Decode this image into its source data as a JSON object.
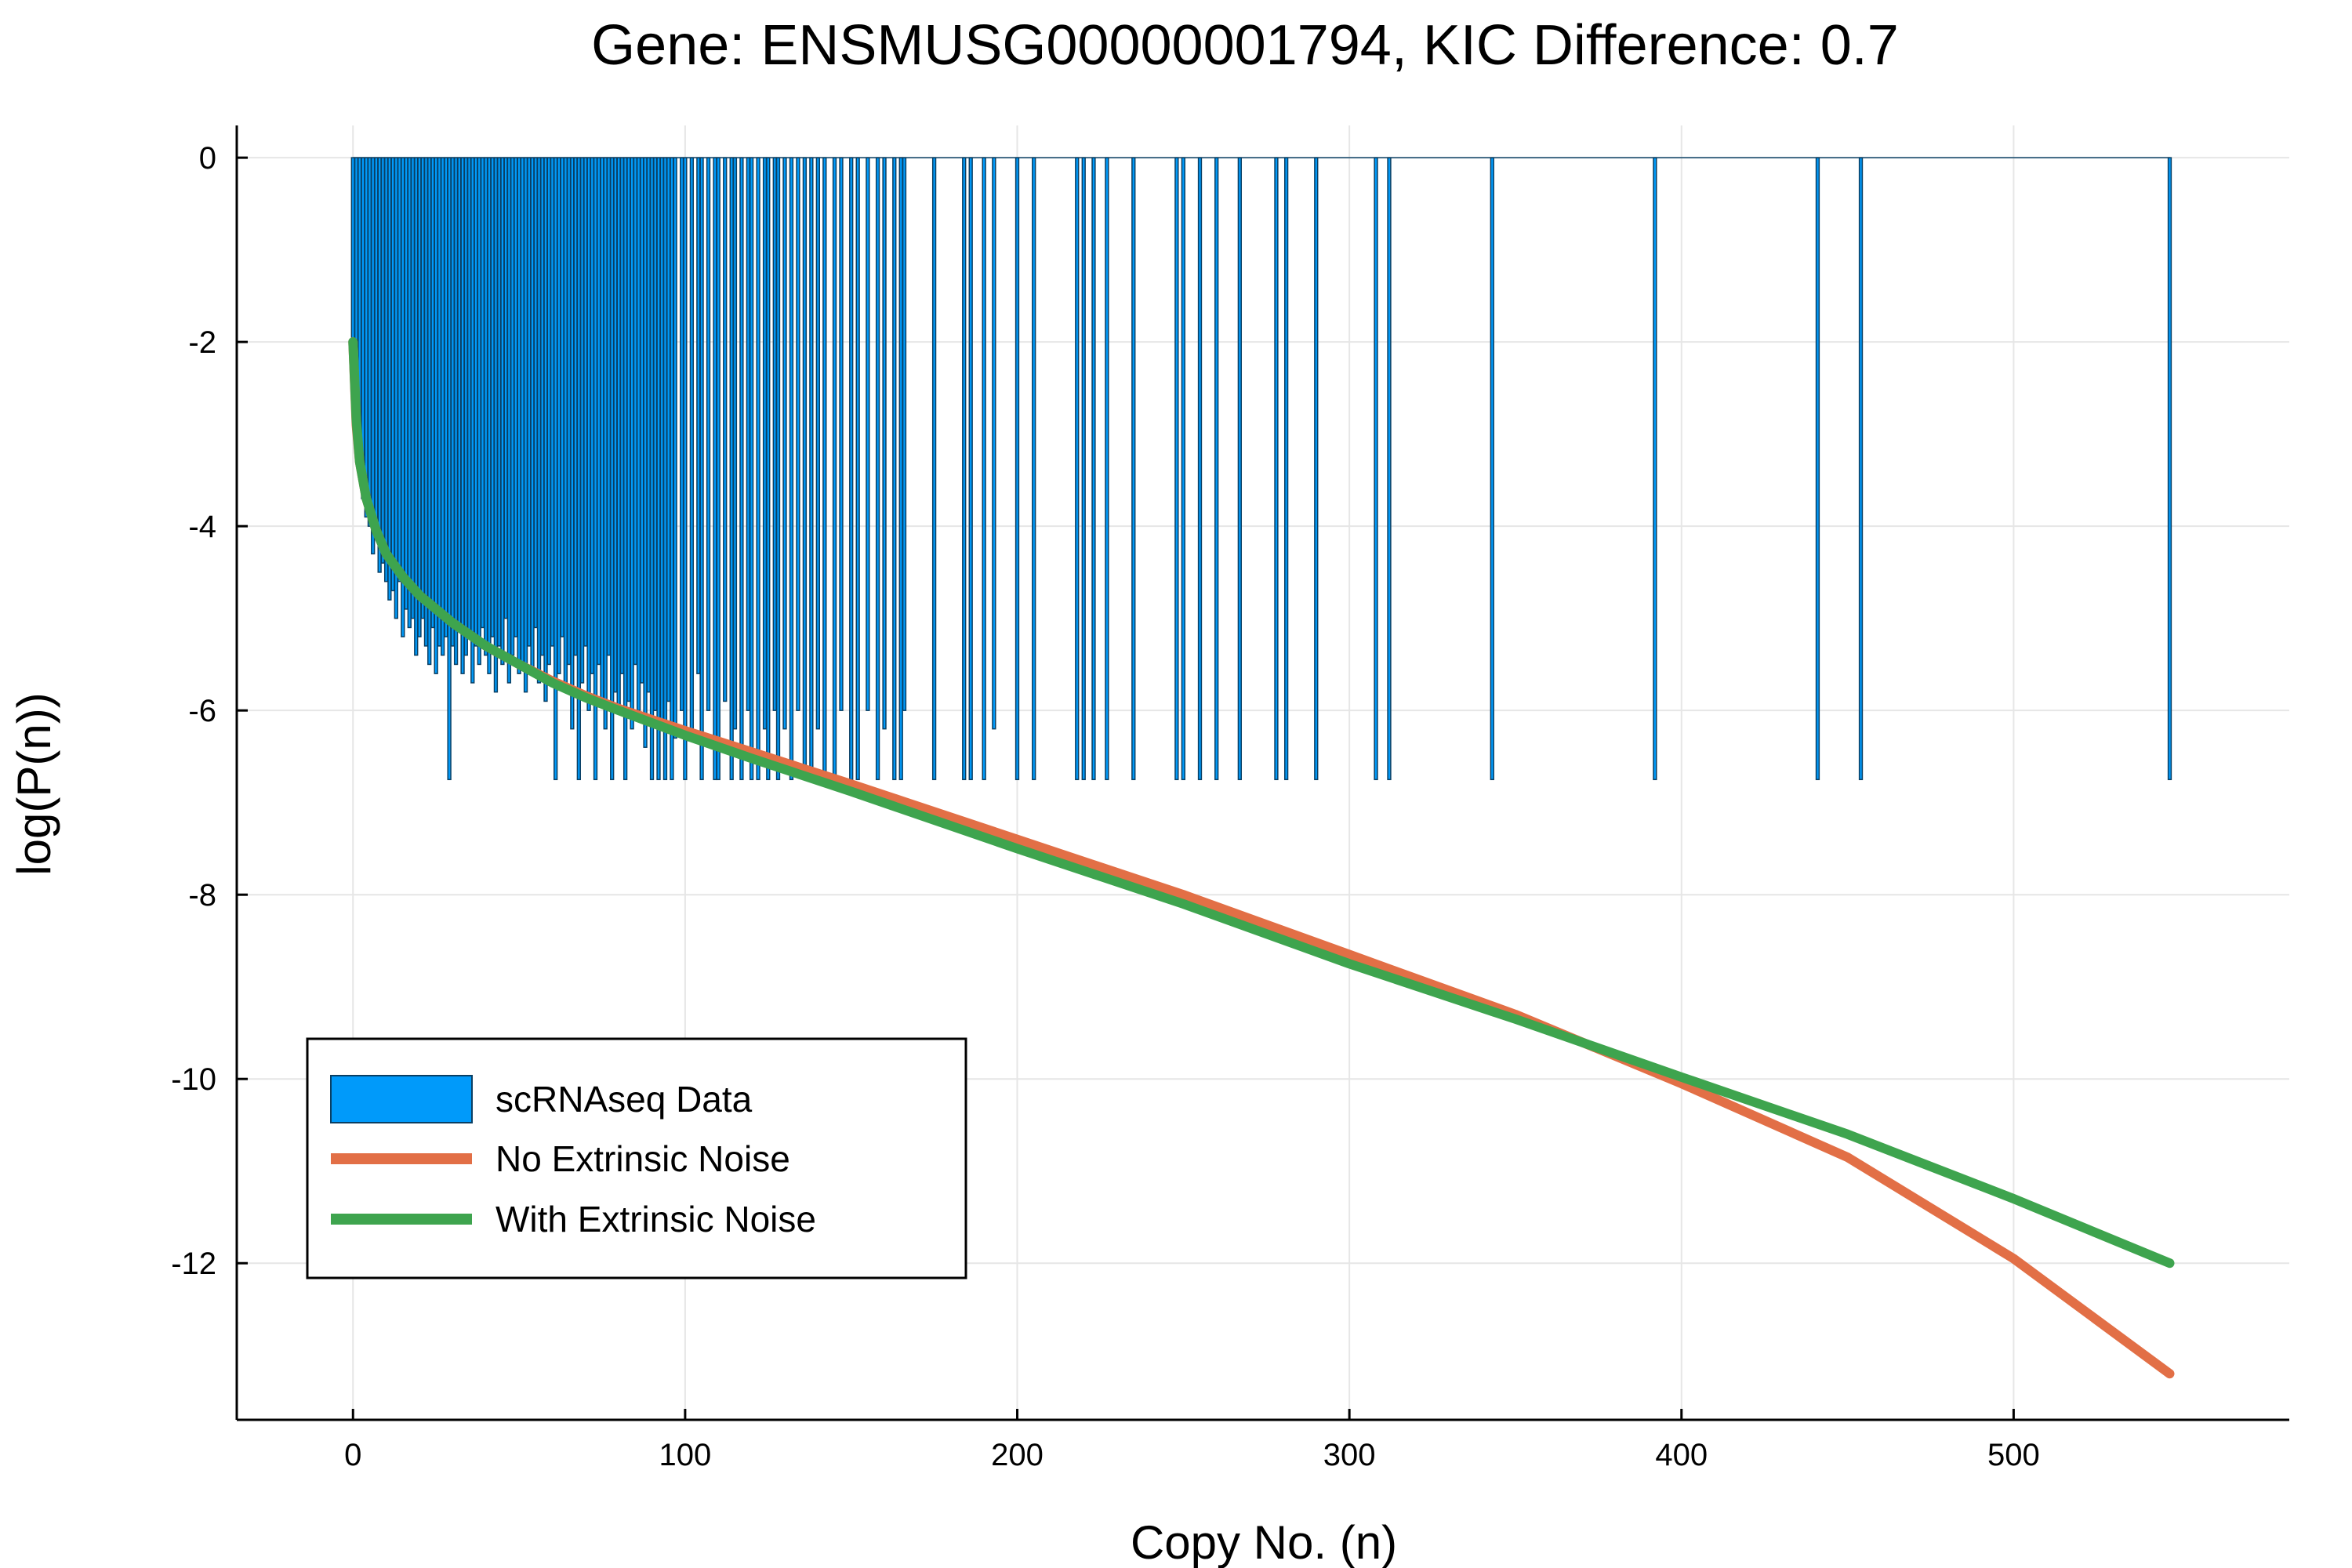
{
  "chart_data": {
    "type": "bar",
    "title": "Gene: ENSMUSG00000001794, KIC Difference: 0.7",
    "xlabel": "Copy No. (n)",
    "ylabel": "log(P(n))",
    "xlim": [
      -35,
      583
    ],
    "ylim": [
      -13.7,
      0.35
    ],
    "xticks": [
      0,
      100,
      200,
      300,
      400,
      500
    ],
    "yticks": [
      0,
      -2,
      -4,
      -6,
      -8,
      -10,
      -12
    ],
    "grid": true,
    "legend_position": "bottom-left",
    "colors": {
      "data": "#009AFA",
      "data_edge": "#0A3F63",
      "no_noise": "#E26F46",
      "with_noise": "#3EA44E",
      "grid": "#E6E6E6",
      "axis": "#000000"
    },
    "series": [
      {
        "name": "scRNAseq Data",
        "kind": "bar",
        "points": [
          [
            0,
            -2.0
          ],
          [
            1,
            -3.0
          ],
          [
            2,
            -3.4
          ],
          [
            3,
            -3.7
          ],
          [
            4,
            -3.9
          ],
          [
            5,
            -4.0
          ],
          [
            6,
            -4.3
          ],
          [
            7,
            -4.1
          ],
          [
            8,
            -4.5
          ],
          [
            9,
            -4.4
          ],
          [
            10,
            -4.6
          ],
          [
            11,
            -4.8
          ],
          [
            12,
            -4.7
          ],
          [
            13,
            -5.0
          ],
          [
            14,
            -4.6
          ],
          [
            15,
            -5.2
          ],
          [
            16,
            -4.9
          ],
          [
            17,
            -5.1
          ],
          [
            18,
            -5.0
          ],
          [
            19,
            -5.4
          ],
          [
            20,
            -5.2
          ],
          [
            21,
            -5.0
          ],
          [
            22,
            -5.3
          ],
          [
            23,
            -5.5
          ],
          [
            24,
            -5.1
          ],
          [
            25,
            -5.6
          ],
          [
            26,
            -5.3
          ],
          [
            27,
            -5.4
          ],
          [
            28,
            -5.2
          ],
          [
            29,
            -6.75
          ],
          [
            30,
            -5.3
          ],
          [
            31,
            -5.5
          ],
          [
            32,
            -5.1
          ],
          [
            33,
            -5.6
          ],
          [
            34,
            -5.4
          ],
          [
            35,
            -5.2
          ],
          [
            36,
            -5.7
          ],
          [
            37,
            -5.3
          ],
          [
            38,
            -5.5
          ],
          [
            39,
            -5.1
          ],
          [
            40,
            -5.4
          ],
          [
            41,
            -5.6
          ],
          [
            42,
            -5.2
          ],
          [
            43,
            -5.8
          ],
          [
            44,
            -5.3
          ],
          [
            45,
            -5.5
          ],
          [
            46,
            -5.0
          ],
          [
            47,
            -5.7
          ],
          [
            48,
            -5.4
          ],
          [
            49,
            -5.2
          ],
          [
            50,
            -5.6
          ],
          [
            51,
            -5.5
          ],
          [
            52,
            -5.8
          ],
          [
            53,
            -5.3
          ],
          [
            54,
            -5.6
          ],
          [
            55,
            -5.1
          ],
          [
            56,
            -5.7
          ],
          [
            57,
            -5.4
          ],
          [
            58,
            -5.9
          ],
          [
            59,
            -5.5
          ],
          [
            60,
            -5.3
          ],
          [
            61,
            -6.75
          ],
          [
            62,
            -5.6
          ],
          [
            63,
            -5.2
          ],
          [
            64,
            -5.8
          ],
          [
            65,
            -5.5
          ],
          [
            66,
            -6.2
          ],
          [
            67,
            -5.4
          ],
          [
            68,
            -6.75
          ],
          [
            69,
            -5.7
          ],
          [
            70,
            -5.3
          ],
          [
            71,
            -6.0
          ],
          [
            72,
            -5.6
          ],
          [
            73,
            -6.75
          ],
          [
            74,
            -5.5
          ],
          [
            75,
            -5.9
          ],
          [
            76,
            -6.2
          ],
          [
            77,
            -5.4
          ],
          [
            78,
            -6.75
          ],
          [
            79,
            -5.8
          ],
          [
            80,
            -6.0
          ],
          [
            81,
            -5.6
          ],
          [
            82,
            -6.75
          ],
          [
            83,
            -5.9
          ],
          [
            84,
            -6.2
          ],
          [
            85,
            -5.5
          ],
          [
            86,
            -6.0
          ],
          [
            87,
            -5.7
          ],
          [
            88,
            -6.4
          ],
          [
            89,
            -5.8
          ],
          [
            90,
            -6.75
          ],
          [
            91,
            -6.0
          ],
          [
            92,
            -6.75
          ],
          [
            93,
            -6.2
          ],
          [
            94,
            -6.75
          ],
          [
            95,
            -5.9
          ],
          [
            96,
            -6.75
          ],
          [
            97,
            -6.3
          ],
          [
            99,
            -6.0
          ],
          [
            100,
            -6.75
          ],
          [
            102,
            -6.2
          ],
          [
            104,
            -5.6
          ],
          [
            105,
            -6.75
          ],
          [
            107,
            -6.0
          ],
          [
            109,
            -6.75
          ],
          [
            110,
            -6.75
          ],
          [
            112,
            -5.9
          ],
          [
            114,
            -6.75
          ],
          [
            115,
            -6.2
          ],
          [
            117,
            -6.75
          ],
          [
            119,
            -6.0
          ],
          [
            120,
            -6.75
          ],
          [
            122,
            -6.75
          ],
          [
            124,
            -6.2
          ],
          [
            125,
            -6.75
          ],
          [
            127,
            -6.0
          ],
          [
            128,
            -6.75
          ],
          [
            130,
            -6.2
          ],
          [
            132,
            -6.75
          ],
          [
            134,
            -6.0
          ],
          [
            136,
            -6.75
          ],
          [
            138,
            -6.75
          ],
          [
            140,
            -6.2
          ],
          [
            142,
            -6.75
          ],
          [
            145,
            -6.75
          ],
          [
            147,
            -6.0
          ],
          [
            150,
            -6.75
          ],
          [
            152,
            -6.75
          ],
          [
            155,
            -6.0
          ],
          [
            158,
            -6.75
          ],
          [
            160,
            -6.2
          ],
          [
            163,
            -6.75
          ],
          [
            165,
            -6.75
          ],
          [
            166,
            -6.0
          ],
          [
            175,
            -6.75
          ],
          [
            184,
            -6.75
          ],
          [
            186,
            -6.75
          ],
          [
            190,
            -6.75
          ],
          [
            193,
            -6.2
          ],
          [
            200,
            -6.75
          ],
          [
            205,
            -6.75
          ],
          [
            218,
            -6.75
          ],
          [
            220,
            -6.75
          ],
          [
            223,
            -6.75
          ],
          [
            227,
            -6.75
          ],
          [
            235,
            -6.75
          ],
          [
            248,
            -6.75
          ],
          [
            250,
            -6.75
          ],
          [
            255,
            -6.75
          ],
          [
            260,
            -6.75
          ],
          [
            267,
            -6.75
          ],
          [
            278,
            -6.75
          ],
          [
            281,
            -6.75
          ],
          [
            290,
            -6.75
          ],
          [
            308,
            -6.75
          ],
          [
            312,
            -6.75
          ],
          [
            343,
            -6.75
          ],
          [
            392,
            -6.75
          ],
          [
            441,
            -6.75
          ],
          [
            454,
            -6.75
          ],
          [
            547,
            -6.75
          ]
        ]
      },
      {
        "name": "No Extrinsic Noise",
        "kind": "line",
        "points": [
          [
            0,
            -2.0
          ],
          [
            1,
            -2.9
          ],
          [
            2,
            -3.3
          ],
          [
            4,
            -3.7
          ],
          [
            7,
            -4.05
          ],
          [
            10,
            -4.3
          ],
          [
            15,
            -4.55
          ],
          [
            20,
            -4.75
          ],
          [
            30,
            -5.05
          ],
          [
            40,
            -5.3
          ],
          [
            50,
            -5.5
          ],
          [
            60,
            -5.68
          ],
          [
            70,
            -5.84
          ],
          [
            80,
            -5.98
          ],
          [
            100,
            -6.22
          ],
          [
            120,
            -6.45
          ],
          [
            150,
            -6.8
          ],
          [
            200,
            -7.4
          ],
          [
            250,
            -8.0
          ],
          [
            300,
            -8.65
          ],
          [
            350,
            -9.3
          ],
          [
            400,
            -10.05
          ],
          [
            450,
            -10.85
          ],
          [
            500,
            -11.95
          ],
          [
            547,
            -13.2
          ]
        ]
      },
      {
        "name": "With Extrinsic Noise",
        "kind": "line",
        "points": [
          [
            0,
            -2.0
          ],
          [
            1,
            -2.85
          ],
          [
            2,
            -3.3
          ],
          [
            4,
            -3.7
          ],
          [
            7,
            -4.05
          ],
          [
            10,
            -4.3
          ],
          [
            15,
            -4.55
          ],
          [
            20,
            -4.75
          ],
          [
            30,
            -5.05
          ],
          [
            40,
            -5.3
          ],
          [
            50,
            -5.5
          ],
          [
            60,
            -5.7
          ],
          [
            70,
            -5.86
          ],
          [
            80,
            -6.0
          ],
          [
            100,
            -6.27
          ],
          [
            120,
            -6.52
          ],
          [
            150,
            -6.88
          ],
          [
            200,
            -7.5
          ],
          [
            250,
            -8.1
          ],
          [
            300,
            -8.75
          ],
          [
            350,
            -9.35
          ],
          [
            400,
            -9.98
          ],
          [
            450,
            -10.6
          ],
          [
            500,
            -11.3
          ],
          [
            547,
            -12.0
          ]
        ]
      }
    ]
  }
}
